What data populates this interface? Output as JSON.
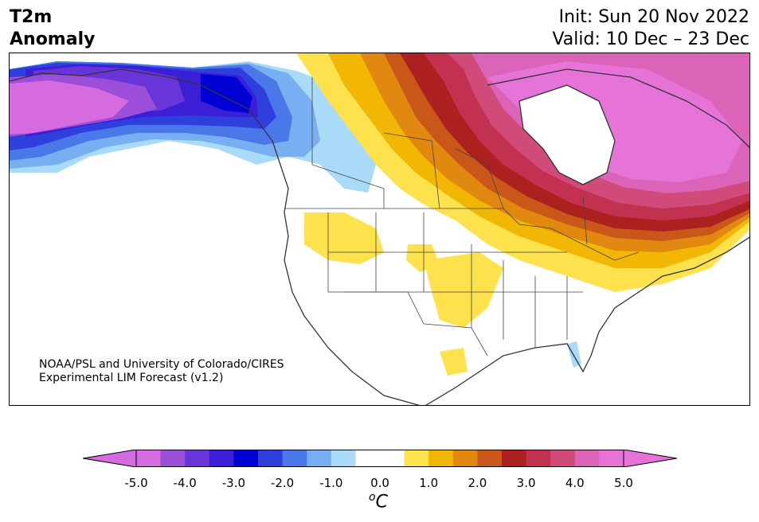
{
  "header": {
    "title": "T2m\nAnomaly",
    "init": "Init: Sun 20 Nov 2022",
    "valid": "Valid: 10 Dec – 23 Dec"
  },
  "credit": {
    "line1": "NOAA/PSL and University of Colorado/CIRES",
    "line2": "Experimental LIM Forecast (v1.2)"
  },
  "colorbar": {
    "unit": "C",
    "unit_sup": "o",
    "ticks": [
      "-5.0",
      "-4.0",
      "-3.0",
      "-2.0",
      "-1.0",
      "0.0",
      "1.0",
      "2.0",
      "3.0",
      "4.0",
      "5.0"
    ],
    "colors": [
      "#d66be0",
      "#9b4fd8",
      "#6a35d8",
      "#3a1fd6",
      "#0000d4",
      "#2e3fdc",
      "#4a78e8",
      "#78aef2",
      "#a9daf8",
      "#ffffff",
      "#ffffff",
      "#fde14d",
      "#f2b705",
      "#e08810",
      "#c9571a",
      "#ad2020",
      "#c23250",
      "#d04a7a",
      "#dc64b8",
      "#e674d8"
    ],
    "under_color": "#d66be0",
    "over_color": "#e674d8"
  },
  "map": {
    "region": "North America",
    "variable": "2m temperature anomaly"
  }
}
